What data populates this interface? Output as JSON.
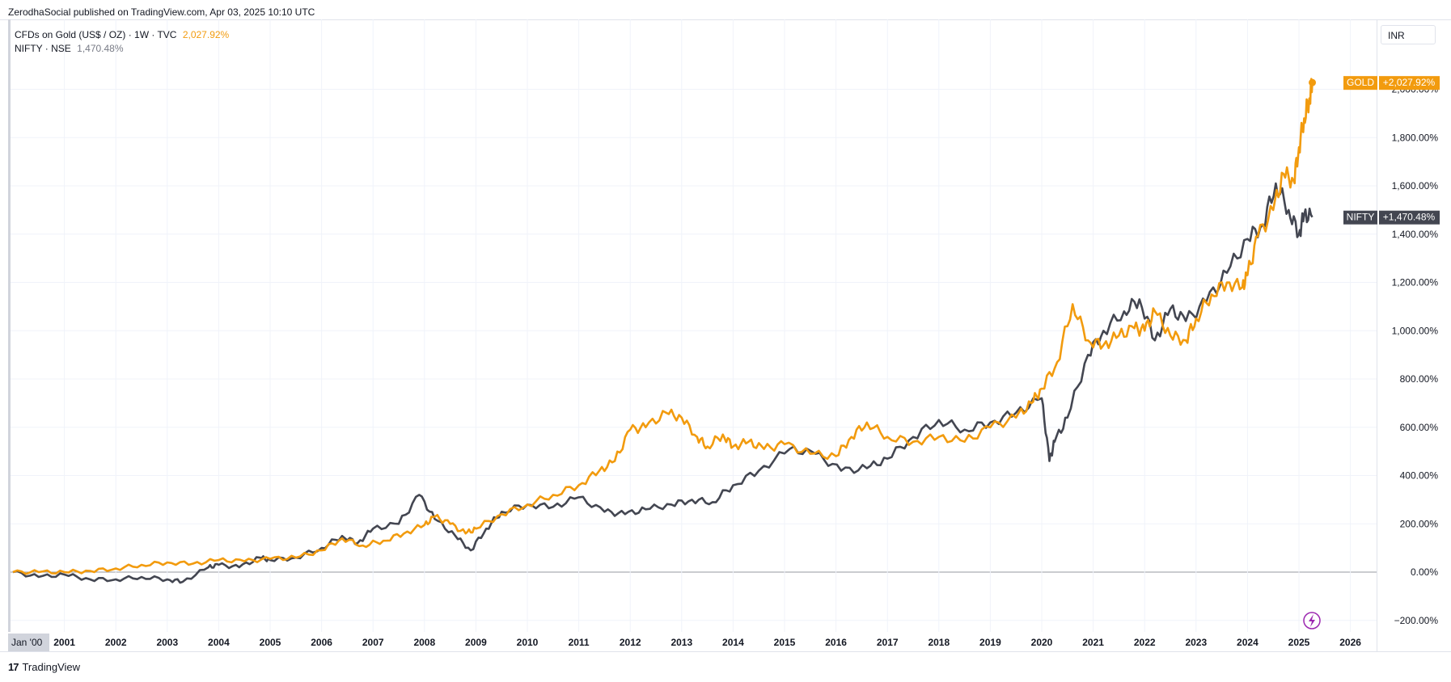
{
  "header": {
    "published_text": "ZerodhaSocial published on TradingView.com, Apr 03, 2025 10:10 UTC"
  },
  "legend": {
    "gold_label": "CFDs on Gold (US$ / OZ) · 1W · TVC",
    "gold_value": "2,027.92%",
    "nifty_label": "NIFTY · NSE",
    "nifty_value": "1,470.48%"
  },
  "currency_button": "INR",
  "footer": {
    "logo_mark": "17",
    "logo_text": "TradingView"
  },
  "colors": {
    "gold": "#f29b0e",
    "nifty": "#434651",
    "grid": "#f0f3fa",
    "zero_line": "#9598a1",
    "axis_text": "#131722"
  },
  "chart_data": {
    "type": "line",
    "title": "",
    "xlabel": "",
    "ylabel": "",
    "y_unit": "%",
    "ylim": [
      -250,
      2200
    ],
    "xlim": [
      2000.0,
      2026.6
    ],
    "grid": true,
    "x_ticks": [
      "Jan '00",
      "2001",
      "2002",
      "2003",
      "2004",
      "2005",
      "2006",
      "2007",
      "2008",
      "2009",
      "2010",
      "2011",
      "2012",
      "2013",
      "2014",
      "2015",
      "2016",
      "2017",
      "2018",
      "2019",
      "2020",
      "2021",
      "2022",
      "2023",
      "2024",
      "2025",
      "2026"
    ],
    "y_ticks": [
      "−200.00%",
      "0.00%",
      "200.00%",
      "400.00%",
      "600.00%",
      "800.00%",
      "1,000.00%",
      "1,200.00%",
      "1,400.00%",
      "1,600.00%",
      "1,800.00%",
      "2,000.00%"
    ],
    "series": [
      {
        "name": "GOLD",
        "last_label": "+2,027.92%",
        "x": [
          2000.0,
          2000.5,
          2001.0,
          2001.5,
          2002.0,
          2002.5,
          2003.0,
          2003.5,
          2004.0,
          2004.5,
          2005.0,
          2005.5,
          2006.0,
          2006.4,
          2006.8,
          2007.2,
          2007.6,
          2008.0,
          2008.2,
          2008.5,
          2008.8,
          2009.0,
          2009.5,
          2010.0,
          2010.5,
          2011.0,
          2011.4,
          2011.7,
          2012.0,
          2012.3,
          2012.7,
          2013.0,
          2013.3,
          2013.5,
          2013.8,
          2014.0,
          2014.3,
          2014.6,
          2015.0,
          2015.5,
          2016.0,
          2016.3,
          2016.6,
          2017.0,
          2017.5,
          2018.0,
          2018.5,
          2019.0,
          2019.5,
          2019.8,
          2020.0,
          2020.3,
          2020.6,
          2020.9,
          2021.2,
          2021.5,
          2021.8,
          2022.0,
          2022.2,
          2022.5,
          2022.8,
          2023.0,
          2023.3,
          2023.6,
          2023.9,
          2024.0,
          2024.2,
          2024.5,
          2024.7,
          2024.9,
          2025.0,
          2025.1,
          2025.2,
          2025.26
        ],
        "values": [
          0,
          0,
          0,
          5,
          15,
          30,
          40,
          35,
          50,
          45,
          55,
          60,
          90,
          140,
          110,
          130,
          160,
          195,
          230,
          200,
          160,
          180,
          240,
          280,
          320,
          360,
          420,
          460,
          590,
          600,
          660,
          640,
          560,
          520,
          570,
          520,
          540,
          510,
          530,
          490,
          480,
          560,
          620,
          560,
          540,
          560,
          540,
          600,
          640,
          700,
          760,
          870,
          1110,
          960,
          940,
          980,
          1010,
          1000,
          1080,
          980,
          960,
          1050,
          1150,
          1200,
          1180,
          1230,
          1390,
          1500,
          1650,
          1620,
          1760,
          1880,
          1960,
          2027.92
        ]
      },
      {
        "name": "NIFTY",
        "last_label": "+1,470.48%",
        "x": [
          2000.0,
          2000.5,
          2001.0,
          2001.5,
          2002.0,
          2002.5,
          2003.0,
          2003.3,
          2003.8,
          2004.0,
          2004.4,
          2004.8,
          2005.0,
          2005.5,
          2006.0,
          2006.4,
          2006.7,
          2007.0,
          2007.5,
          2007.9,
          2008.2,
          2008.6,
          2008.9,
          2009.2,
          2009.5,
          2010.0,
          2010.5,
          2011.0,
          2011.5,
          2011.9,
          2012.3,
          2012.8,
          2013.2,
          2013.6,
          2014.0,
          2014.5,
          2015.1,
          2015.6,
          2016.1,
          2016.6,
          2017.0,
          2017.5,
          2018.0,
          2018.5,
          2019.0,
          2019.5,
          2020.0,
          2020.15,
          2020.25,
          2020.5,
          2020.9,
          2021.2,
          2021.6,
          2021.9,
          2022.2,
          2022.5,
          2022.8,
          2023.2,
          2023.6,
          2024.0,
          2024.3,
          2024.55,
          2024.8,
          2025.0,
          2025.1,
          2025.26
        ],
        "values": [
          0,
          -20,
          -10,
          -30,
          -30,
          -20,
          -30,
          -40,
          20,
          30,
          20,
          60,
          50,
          60,
          100,
          150,
          120,
          180,
          200,
          320,
          220,
          150,
          90,
          180,
          250,
          280,
          270,
          310,
          250,
          240,
          260,
          280,
          300,
          290,
          360,
          420,
          510,
          490,
          420,
          430,
          470,
          560,
          630,
          590,
          620,
          660,
          720,
          460,
          540,
          640,
          900,
          1000,
          1080,
          1130,
          960,
          1090,
          1040,
          1120,
          1240,
          1380,
          1440,
          1610,
          1500,
          1400,
          1480,
          1470.48
        ]
      }
    ]
  }
}
